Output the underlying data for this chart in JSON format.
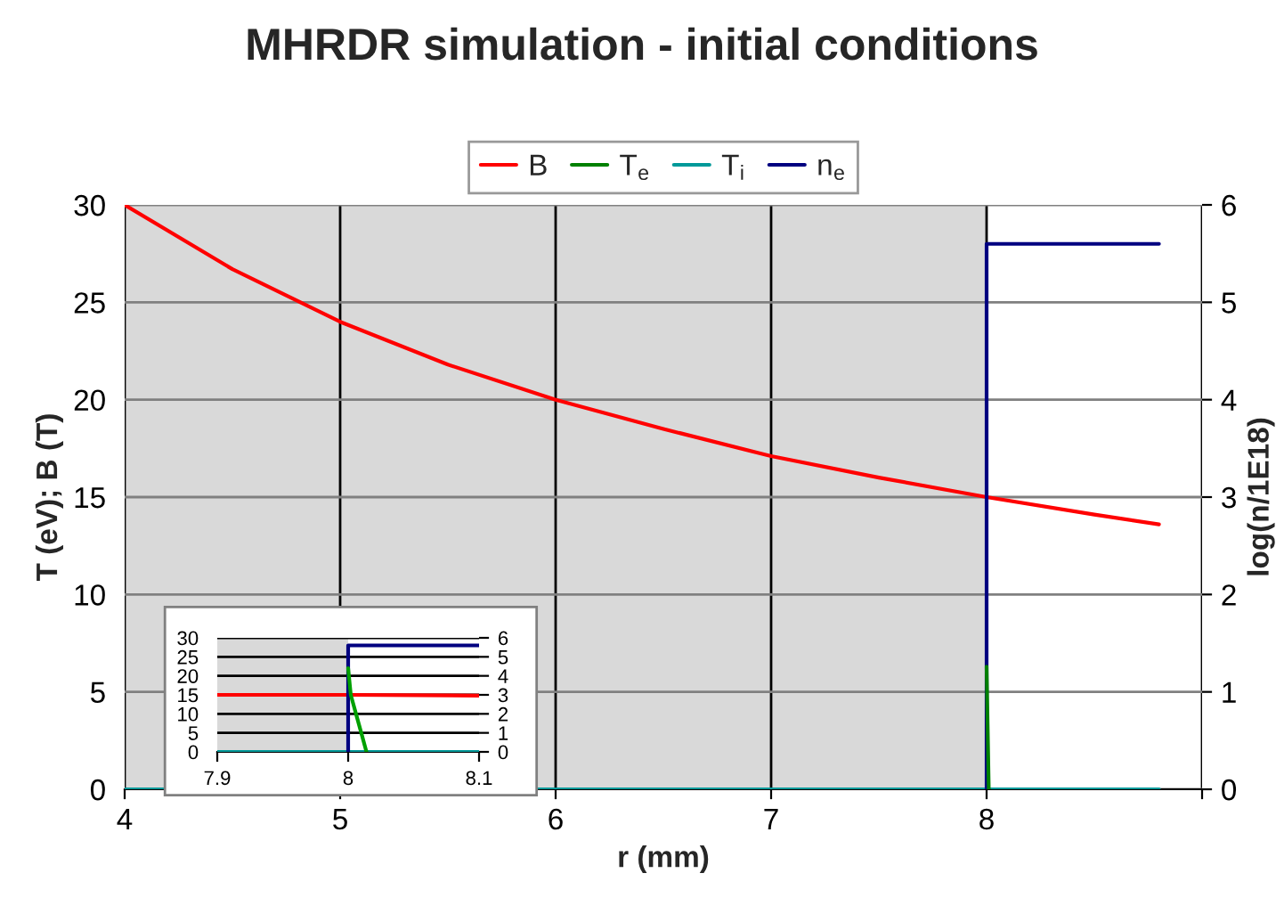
{
  "chart_data": [
    {
      "type": "line",
      "title": "MHRDR simulation - initial conditions",
      "xlabel": "r (mm)",
      "ylabel": "T (eV); B (T)",
      "y2label": "log(n/1E18)",
      "xlim": [
        4,
        9
      ],
      "xticks": [
        4,
        5,
        6,
        7,
        8,
        {
          "value": 9,
          "label": null
        }
      ],
      "ylim": [
        0,
        30
      ],
      "yticks": [
        0,
        5,
        10,
        15,
        20,
        25,
        30
      ],
      "y2lim": [
        0,
        6
      ],
      "y2ticks": [
        0,
        1,
        2,
        3,
        4,
        5,
        6
      ],
      "grid": true,
      "legend": "top",
      "marker": "none",
      "line_style": "solid",
      "bands": [
        {
          "axis": "x",
          "from": 4,
          "to": 8,
          "color": "#d9d9d9"
        }
      ],
      "series": [
        {
          "name": "B",
          "color": "#ff0000",
          "x": [
            4,
            4.5,
            5,
            5.5,
            6,
            6.5,
            7,
            7.5,
            8,
            8.5,
            8.8
          ],
          "values": [
            30,
            26.7,
            24,
            21.8,
            20,
            18.5,
            17.1,
            16,
            15,
            14.1,
            13.6
          ]
        },
        {
          "name": "T$_{e}$",
          "color": "#008000",
          "x": [
            8,
            8.01
          ],
          "values": [
            6.3,
            0
          ]
        },
        {
          "name": "T$_{i}$",
          "color": "#009999",
          "x": [
            4,
            8.8
          ],
          "values": [
            0,
            0
          ]
        },
        {
          "name": "n$_{e}$",
          "color": "#000080",
          "axis": "y2",
          "x": [
            8,
            8,
            8.8
          ],
          "values": [
            0,
            5.6,
            5.6
          ]
        }
      ]
    },
    {
      "type": "line",
      "xlim": [
        7.9,
        8.1
      ],
      "xticks": [
        7.9,
        8,
        8.1
      ],
      "ylim": [
        0,
        30
      ],
      "yticks": [
        0,
        5,
        10,
        15,
        20,
        25,
        30
      ],
      "y2lim": [
        0,
        6
      ],
      "y2ticks": [
        0,
        1,
        2,
        3,
        4,
        5,
        6
      ],
      "grid": "y",
      "marker": "none",
      "line_style": "solid",
      "bands": [
        {
          "axis": "x",
          "from": 7.9,
          "to": 8,
          "color": "#d9d9d9"
        }
      ],
      "series": [
        {
          "color": "#ff0000",
          "x": [
            7.9,
            8,
            8.1
          ],
          "values": [
            15,
            15,
            14.8
          ]
        },
        {
          "color": "#00a000",
          "x": [
            8,
            8.002,
            8.006,
            8.01,
            8.014
          ],
          "values": [
            22,
            15,
            10,
            5,
            0
          ]
        },
        {
          "color": "#009999",
          "x": [
            7.9,
            8.1
          ],
          "values": [
            0,
            0
          ]
        },
        {
          "color": "#000080",
          "axis": "y2",
          "x": [
            8,
            8,
            8.1
          ],
          "values": [
            0,
            5.6,
            5.6
          ]
        }
      ]
    }
  ]
}
